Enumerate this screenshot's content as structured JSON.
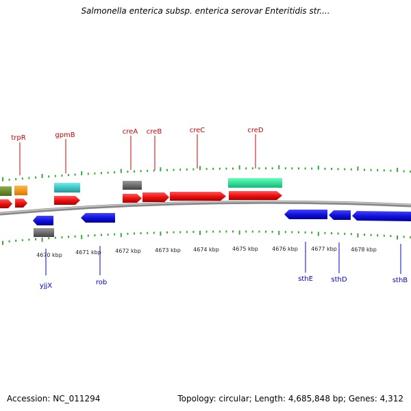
{
  "header": {
    "title": "Salmonella enterica subsp. enterica serovar Enteritidis str...."
  },
  "footer": {
    "accession": "Accession: NC_011294",
    "stats": "Topology: circular; Length: 4,685,848 bp; Genes: 4,312"
  },
  "colors": {
    "forward_gene": "#ee1111",
    "reverse_gene": "#1111dd",
    "rna_cyan": "#33cccc",
    "rna_green": "#22ee99",
    "pseudo_grey": "#666666",
    "olive": "#6b8e23",
    "orange": "#ff9900",
    "tick_green": "#33aa33",
    "backbone": "#999999"
  },
  "scale_labels": [
    "4670 kbp",
    "4671 kbp",
    "4672 kbp",
    "4673 kbp",
    "4674 kbp",
    "4675 kbp",
    "4676 kbp",
    "4677 kbp",
    "4678 kbp"
  ],
  "top_gene_labels": [
    "trpR",
    "gpmB",
    "creA",
    "creB",
    "creC",
    "creD"
  ],
  "bottom_gene_labels": [
    "yjjX",
    "rob",
    "sthE",
    "sthD",
    "sthB"
  ]
}
